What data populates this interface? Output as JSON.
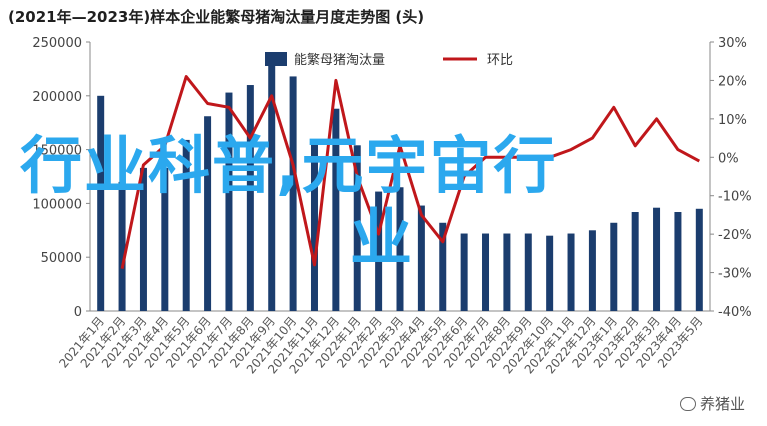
{
  "title": "(2021年—2023年)样本企业能繁母猪淘汰量月度走势图 (头)",
  "overlay": {
    "line1": "行业科普,元宇宙行",
    "line2": "业"
  },
  "watermark": "养猪业",
  "colors": {
    "bar": "#1b3d6e",
    "line": "#c0171b",
    "axis": "#888888",
    "overlay": "#2ba8ee"
  },
  "chart_data": {
    "type": "bar",
    "categories": [
      "2021年1月",
      "2021年2月",
      "2021年3月",
      "2021年4月",
      "2021年5月",
      "2021年6月",
      "2021年7月",
      "2021年8月",
      "2021年9月",
      "2021年10月",
      "2021年11月",
      "2021年12月",
      "2022年1月",
      "2022年2月",
      "2022年3月",
      "2022年4月",
      "2022年5月",
      "2022年6月",
      "2022年7月",
      "2022年8月",
      "2022年9月",
      "2022年10月",
      "2022年11月",
      "2022年12月",
      "2023年1月",
      "2023年2月",
      "2023年3月",
      "2023年4月",
      "2023年5月"
    ],
    "series": [
      {
        "name": "能繁母猪淘汰量",
        "axis": "left",
        "type": "bar",
        "values": [
          200000,
          120000,
          133000,
          133000,
          159000,
          181000,
          203000,
          210000,
          232000,
          218000,
          156000,
          188000,
          154000,
          111000,
          115000,
          98000,
          82000,
          72000,
          72000,
          72000,
          72000,
          70000,
          72000,
          75000,
          82000,
          92000,
          96000,
          92000,
          95000
        ]
      },
      {
        "name": "环比",
        "axis": "right",
        "type": "line",
        "values": [
          null,
          -29,
          -2,
          3,
          21,
          14,
          13,
          5,
          16,
          -2,
          -28,
          20,
          -5,
          -20,
          3,
          -15,
          -22,
          -5,
          0,
          0,
          0,
          0,
          2,
          5,
          13,
          3,
          10,
          2,
          -1
        ]
      }
    ],
    "left_axis": {
      "ylim": [
        0,
        250000
      ],
      "ticks": [
        0,
        50000,
        100000,
        150000,
        200000,
        250000
      ]
    },
    "right_axis": {
      "ylim": [
        -40,
        30
      ],
      "ticks": [
        "-40%",
        "-30%",
        "-20%",
        "-10%",
        "0%",
        "10%",
        "20%",
        "30%"
      ]
    },
    "legend": "top-center"
  }
}
